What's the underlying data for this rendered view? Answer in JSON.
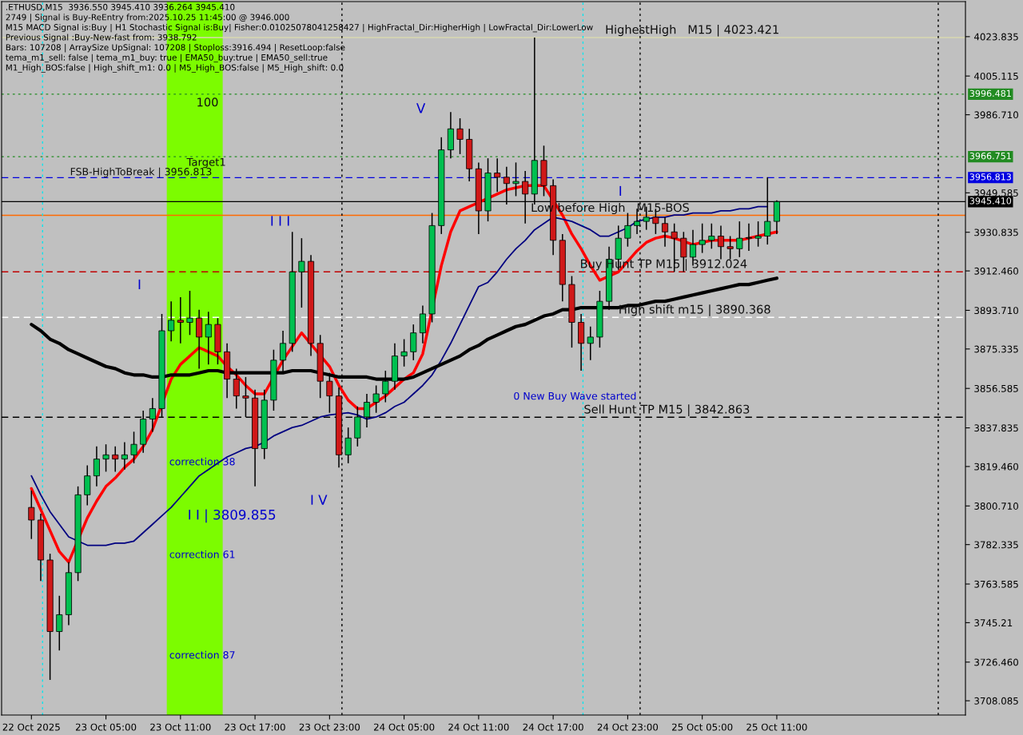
{
  "chart_data": {
    "type": "candlestick",
    "title": ".ETHUSD,M15  3936.550 3945.410 3936.264 3945.410",
    "annotations": [
      "2749 | Signal is Buy-ReEntry from:2025.10.25 11:45:00 @ 3946.000",
      "M15 MACD Signal is:Buy | H1 Stochastic Signal is:Buy| Fisher:0.01025078041258427 | HighFractal_Dir:HigherHigh | LowFractal_Dir:LowerLow",
      "Previous Signal :Buy-New-fast from: 3938.792",
      "Bars: 107208 | ArraySize UpSignal: 107208 | Stoploss:3916.494 | ResetLoop:false",
      "tema_m1_sell: false | tema_m1_buy: true | EMA50_buy:true | EMA50_sell:true",
      "M1_High_BOS:false | High_shift_m1: 0.0 | M5_High_BOS:false | M5_High_shift: 0.0",
      {
        "text": "HighestHigh   M15 | 4023.421",
        "y": 4023.421
      },
      {
        "text": "FSB-HighToBreak | 3956.813",
        "y": 3956.813
      },
      {
        "text": "Low before High   M15-BOS",
        "y": 3938.9
      },
      {
        "text": "Buy Hunt TP M15 | 3912.024",
        "y": 3912.024
      },
      {
        "text": "High shift m15 | 3890.368",
        "y": 3890.368
      },
      {
        "text": "Sell Hunt TP M15 | 3842.863",
        "y": 3842.863
      },
      {
        "text": "100",
        "y": 3996.481
      },
      {
        "text": "Target1",
        "y": 3966.751
      },
      "correction 38",
      "correction 61",
      "correction 87",
      "I",
      "I I | 3809.855",
      "I I I",
      "I V",
      "V",
      "I",
      "0 New Buy Wave started"
    ],
    "categories": [
      "22 Oct 2025",
      null,
      null,
      null,
      null,
      null,
      null,
      null,
      "23 Oct 05:00",
      null,
      null,
      null,
      null,
      null,
      null,
      null,
      "23 Oct 11:00",
      null,
      null,
      null,
      null,
      null,
      null,
      null,
      "23 Oct 17:00",
      null,
      null,
      null,
      null,
      null,
      null,
      null,
      "23 Oct 23:00",
      null,
      null,
      null,
      null,
      null,
      null,
      null,
      "24 Oct 05:00",
      null,
      null,
      null,
      null,
      null,
      null,
      null,
      "24 Oct 11:00",
      null,
      null,
      null,
      null,
      null,
      null,
      null,
      "24 Oct 17:00",
      null,
      null,
      null,
      null,
      null,
      null,
      null,
      "24 Oct 23:00",
      null,
      null,
      null,
      null,
      null,
      null,
      null,
      "25 Oct 05:00",
      null,
      null,
      null,
      null,
      null,
      null,
      null,
      "25 Oct 11:00"
    ],
    "ohlc": [
      [
        3800,
        3808,
        3785,
        3794
      ],
      [
        3794,
        3797,
        3765,
        3775
      ],
      [
        3775,
        3778,
        3718,
        3741
      ],
      [
        3741,
        3758,
        3732,
        3749
      ],
      [
        3749,
        3774,
        3744,
        3769
      ],
      [
        3769,
        3810,
        3765,
        3806
      ],
      [
        3806,
        3820,
        3801,
        3815
      ],
      [
        3815,
        3829,
        3810,
        3823
      ],
      [
        3823,
        3830,
        3817,
        3825
      ],
      [
        3825,
        3829,
        3817,
        3823
      ],
      [
        3823,
        3831,
        3818,
        3825
      ],
      [
        3825,
        3836,
        3821,
        3830
      ],
      [
        3830,
        3846,
        3826,
        3842
      ],
      [
        3842,
        3852,
        3836,
        3847
      ],
      [
        3847,
        3892,
        3843,
        3884
      ],
      [
        3884,
        3898,
        3879,
        3889
      ],
      [
        3889,
        3900,
        3878,
        3888
      ],
      [
        3888,
        3903,
        3882,
        3890
      ],
      [
        3890,
        3894,
        3866,
        3881
      ],
      [
        3881,
        3893,
        3868,
        3887
      ],
      [
        3887,
        3890,
        3868,
        3874
      ],
      [
        3874,
        3878,
        3852,
        3861
      ],
      [
        3861,
        3866,
        3847,
        3853
      ],
      [
        3853,
        3862,
        3843,
        3852
      ],
      [
        3852,
        3856,
        3810,
        3828
      ],
      [
        3828,
        3856,
        3823,
        3851
      ],
      [
        3851,
        3875,
        3846,
        3870
      ],
      [
        3870,
        3884,
        3864,
        3878
      ],
      [
        3878,
        3931,
        3874,
        3912
      ],
      [
        3912,
        3928,
        3895,
        3917
      ],
      [
        3917,
        3920,
        3872,
        3878
      ],
      [
        3878,
        3882,
        3852,
        3860
      ],
      [
        3860,
        3864,
        3845,
        3853
      ],
      [
        3853,
        3857,
        3819,
        3825
      ],
      [
        3825,
        3838,
        3821,
        3833
      ],
      [
        3833,
        3848,
        3829,
        3843
      ],
      [
        3843,
        3854,
        3838,
        3850
      ],
      [
        3850,
        3858,
        3845,
        3854
      ],
      [
        3854,
        3865,
        3850,
        3860
      ],
      [
        3860,
        3878,
        3856,
        3872
      ],
      [
        3872,
        3880,
        3867,
        3874
      ],
      [
        3874,
        3887,
        3870,
        3883
      ],
      [
        3883,
        3896,
        3878,
        3892
      ],
      [
        3892,
        3940,
        3888,
        3934
      ],
      [
        3934,
        3976,
        3930,
        3970
      ],
      [
        3970,
        3988,
        3966,
        3980
      ],
      [
        3980,
        3985,
        3968,
        3975
      ],
      [
        3975,
        3980,
        3955,
        3961
      ],
      [
        3961,
        3964,
        3930,
        3941
      ],
      [
        3941,
        3966,
        3936,
        3959
      ],
      [
        3959,
        3966,
        3950,
        3957
      ],
      [
        3957,
        3962,
        3944,
        3954
      ],
      [
        3954,
        3964,
        3948,
        3955
      ],
      [
        3955,
        3960,
        3935,
        3949
      ],
      [
        3949,
        4023.4,
        3944,
        3965
      ],
      [
        3965,
        3972,
        3948,
        3953
      ],
      [
        3953,
        3956,
        3920,
        3927
      ],
      [
        3927,
        3930,
        3898,
        3906
      ],
      [
        3906,
        3910,
        3876,
        3888
      ],
      [
        3888,
        3892,
        3865,
        3878
      ],
      [
        3878,
        3886,
        3870,
        3881
      ],
      [
        3881,
        3903,
        3876,
        3898
      ],
      [
        3898,
        3924,
        3894,
        3918
      ],
      [
        3918,
        3934,
        3913,
        3928
      ],
      [
        3928,
        3940,
        3924,
        3934
      ],
      [
        3934,
        3942,
        3930,
        3936
      ],
      [
        3936,
        3943,
        3932,
        3938
      ],
      [
        3938,
        3942,
        3930,
        3935
      ],
      [
        3935,
        3938,
        3924,
        3931
      ],
      [
        3931,
        3935,
        3912,
        3928
      ],
      [
        3928,
        3931,
        3912,
        3919
      ],
      [
        3919,
        3932,
        3915,
        3925
      ],
      [
        3925,
        3935,
        3921,
        3927
      ],
      [
        3927,
        3935,
        3923,
        3929
      ],
      [
        3929,
        3934,
        3918,
        3924
      ],
      [
        3924,
        3929,
        3918,
        3923
      ],
      [
        3923,
        3936,
        3919,
        3928
      ],
      [
        3928,
        3935,
        3922,
        3928
      ],
      [
        3928,
        3936,
        3924,
        3929
      ],
      [
        3929,
        3957,
        3925,
        3936
      ],
      [
        3936,
        3946,
        3930,
        3945.41
      ]
    ],
    "series": [
      {
        "type": "line",
        "color": "#ff0000",
        "values": [
          3809,
          3799,
          3789,
          3779,
          3774,
          null,
          3795,
          3803,
          3810,
          3814,
          3819,
          3823,
          3829,
          3837,
          null,
          3861,
          3868,
          3872,
          3876,
          3874,
          3872,
          3867,
          3863,
          3858,
          3854,
          3854,
          null,
          3870,
          null,
          3883,
          null,
          null,
          3867,
          3858,
          3851,
          3847,
          3847,
          3850,
          3853,
          3857,
          3861,
          3864,
          3873,
          null,
          3915,
          3931,
          3941,
          3943,
          null,
          null,
          3949,
          3951,
          3952,
          3953,
          null,
          3953,
          null,
          3939,
          3930,
          3923,
          3915,
          3908,
          null,
          3912,
          3917,
          3922,
          3926,
          3928,
          3929,
          3928,
          null,
          3925,
          3926,
          3927,
          3927,
          3927,
          3927,
          3928,
          3929,
          null,
          3931
        ]
      },
      {
        "type": "line",
        "color": "#000080",
        "values": [
          3815,
          3806,
          3798,
          3792,
          3786,
          null,
          3782,
          3782,
          3782,
          3783,
          3783,
          3784,
          3788,
          3792,
          3796,
          3800,
          3805,
          3810,
          3815,
          3818,
          3821,
          3824,
          3826,
          3828,
          3829,
          3831,
          3834,
          3836,
          3838,
          3839,
          3841,
          3843,
          3844,
          null,
          3845,
          3844,
          3842,
          3843,
          3845,
          3848,
          3850,
          3854,
          3858,
          3863,
          3870,
          3878,
          3887,
          3896,
          3905,
          3907,
          3912,
          3918,
          3923,
          3927,
          3932,
          3935,
          3938,
          3937,
          3936,
          3934,
          3932,
          3929,
          3929,
          3931,
          3933,
          3936,
          3937,
          3938,
          3938,
          3939,
          3939,
          3940,
          3940,
          3940,
          3941,
          3941,
          3942,
          3942,
          3943,
          3943,
          null
        ]
      },
      {
        "type": "line",
        "color": "#000000",
        "values": [
          3887,
          3884,
          3880,
          3878,
          3875,
          3873,
          3871,
          3869,
          3867,
          3866,
          3864,
          3863,
          3863,
          3862,
          3862,
          3863,
          3863,
          3863,
          3864,
          3865,
          3865,
          3864,
          3864,
          3864,
          3864,
          3864,
          3864,
          3864,
          3865,
          3865,
          3865,
          3864,
          3863,
          3862,
          3862,
          3862,
          3862,
          3861,
          3861,
          3861,
          3861,
          3862,
          3864,
          3866,
          3868,
          3870,
          3872,
          3875,
          3877,
          3880,
          3882,
          3884,
          3886,
          3887,
          3889,
          3891,
          3892,
          3894,
          3894,
          3895,
          3895,
          3895,
          3895,
          3895,
          3896,
          3896,
          3897,
          3898,
          3898,
          3899,
          3900,
          3901,
          3902,
          3903,
          3904,
          3905,
          3906,
          3906,
          3907,
          3908,
          3909
        ]
      }
    ],
    "ylim": [
      3701.3,
      4040.5
    ],
    "yticks": [
      4023.835,
      4005.115,
      {
        "value": 3986.71,
        "label": "3986.710"
      },
      3949.585,
      3930.835,
      {
        "value": 3912.46,
        "label": "3912.460"
      },
      {
        "value": 3893.71,
        "label": "3893.710"
      },
      3875.335,
      3856.585,
      3837.835,
      {
        "value": 3819.46,
        "label": "3819.460"
      },
      {
        "value": 3800.71,
        "label": "3800.710"
      },
      3782.335,
      3763.585,
      3745.21,
      {
        "value": 3726.46,
        "label": "3726.460"
      },
      3708.085
    ],
    "ref_lines": [
      {
        "axis": "y",
        "value": 4023.421,
        "color": "#d8d8b0",
        "line_style": "solid"
      },
      {
        "axis": "y",
        "value": 3996.481,
        "label": "3996.481",
        "color": "#228b22",
        "line_style": "dotted"
      },
      {
        "axis": "y",
        "value": 3966.751,
        "label": "3966.751",
        "color": "#228b22",
        "line_style": "dotted"
      },
      {
        "axis": "y",
        "value": 3956.813,
        "label": "3956.813",
        "color": "#0000e0",
        "line_style": "dashed"
      },
      {
        "axis": "y",
        "value": 3945.41,
        "label": "3945.410",
        "color": "#000000",
        "line_style": "solid"
      },
      {
        "axis": "y",
        "value": 3938.9,
        "color": "#ff6a00",
        "line_style": "solid"
      },
      {
        "axis": "y",
        "value": 3912.024,
        "color": "#c00000",
        "line_style": "dashed"
      },
      {
        "axis": "y",
        "value": 3890.368,
        "color": "#ffffff",
        "line_style": "dashed"
      },
      {
        "axis": "y",
        "value": 3842.863,
        "color": "#000000",
        "line_style": "dashed"
      }
    ]
  }
}
